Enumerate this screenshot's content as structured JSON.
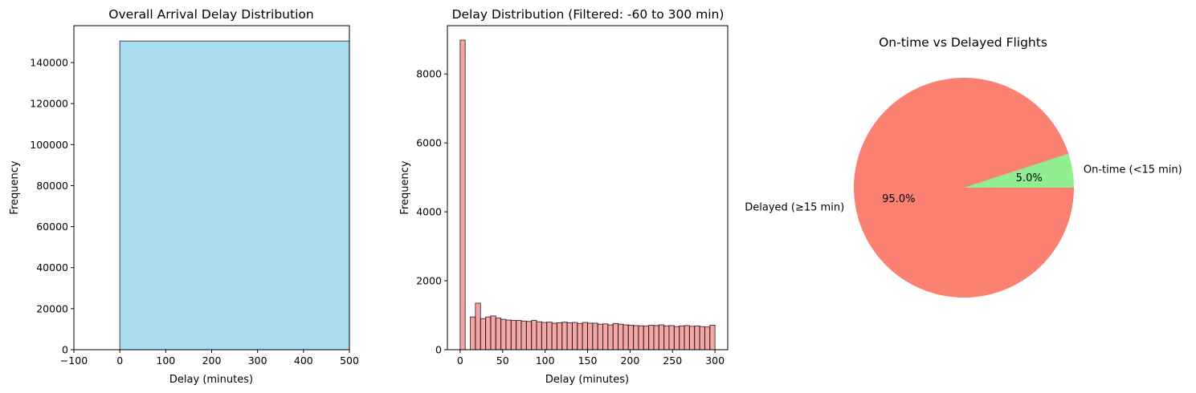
{
  "chart_data": [
    {
      "type": "bar",
      "title": "Overall Arrival Delay Distribution",
      "xlabel": "Delay (minutes)",
      "ylabel": "Frequency",
      "xlim": [
        -100,
        500
      ],
      "ylim": [
        0,
        158000
      ],
      "xticks": [
        -100,
        0,
        100,
        200,
        300,
        400,
        500
      ],
      "yticks": [
        0,
        20000,
        40000,
        60000,
        80000,
        100000,
        120000,
        140000
      ],
      "bar_color": "#87CEEB",
      "bars": [
        {
          "x0": 0,
          "x1": 500,
          "value": 150500
        }
      ],
      "grid": false
    },
    {
      "type": "bar",
      "title": "Delay Distribution (Filtered: -60 to 300 min)",
      "xlabel": "Delay (minutes)",
      "ylabel": "Frequency",
      "xlim": [
        -15,
        315
      ],
      "ylim": [
        0,
        9400
      ],
      "xticks": [
        0,
        50,
        100,
        150,
        200,
        250,
        300
      ],
      "yticks": [
        0,
        2000,
        4000,
        6000,
        8000
      ],
      "bar_color": "#F08080",
      "bin_start": 0,
      "bin_width": 6,
      "values": [
        8980,
        0,
        950,
        1350,
        900,
        950,
        980,
        920,
        880,
        860,
        850,
        850,
        830,
        820,
        850,
        810,
        790,
        800,
        770,
        780,
        800,
        780,
        790,
        760,
        790,
        770,
        770,
        740,
        750,
        720,
        760,
        740,
        720,
        710,
        700,
        690,
        690,
        710,
        700,
        720,
        690,
        700,
        670,
        690,
        700,
        680,
        690,
        670,
        660,
        710
      ],
      "grid": false
    },
    {
      "type": "pie",
      "title": "On-time vs Delayed Flights",
      "slices": [
        {
          "label": "On-time (<15 min)",
          "value": 5.0,
          "pct_label": "5.0%",
          "color": "#90EE90"
        },
        {
          "label": "Delayed (≥15 min)",
          "value": 95.0,
          "pct_label": "95.0%",
          "color": "#FA8072"
        }
      ],
      "start_angle": 0
    }
  ]
}
